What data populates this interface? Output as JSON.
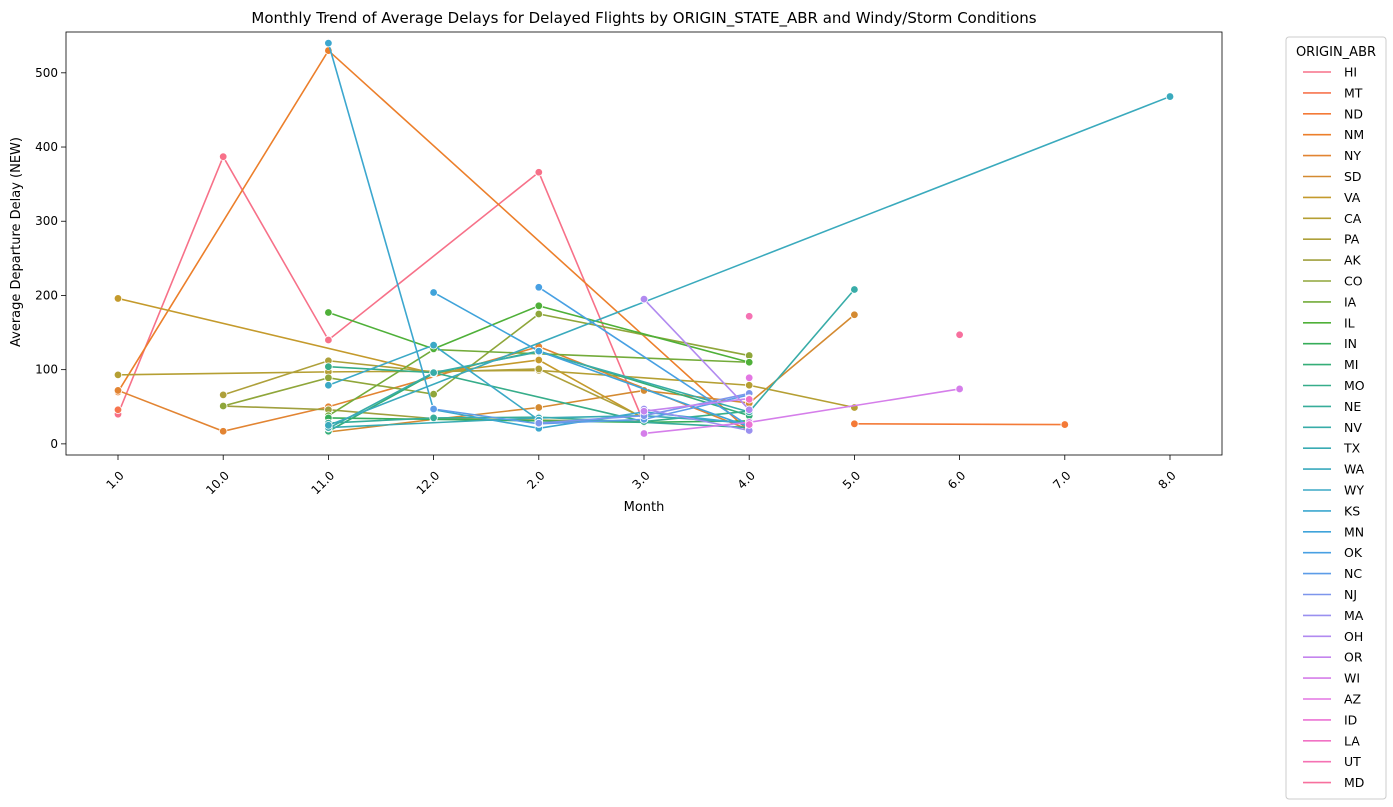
{
  "chart_data": {
    "type": "line",
    "title": "Monthly Trend of Average Delays for Delayed Flights by ORIGIN_STATE_ABR and Windy/Storm Conditions",
    "xlabel": "Month",
    "ylabel": "Average Departure Delay (NEW)",
    "categories": [
      "1.0",
      "10.0",
      "11.0",
      "12.0",
      "2.0",
      "3.0",
      "4.0",
      "5.0",
      "6.0",
      "7.0",
      "8.0"
    ],
    "y_ticks": [
      0,
      100,
      200,
      300,
      400,
      500
    ],
    "ylim": [
      -15,
      555
    ],
    "grid": false,
    "legend": {
      "title": "ORIGIN_ABR",
      "placement": "outside-right"
    },
    "series": [
      {
        "name": "HI",
        "color": "#f77189",
        "points": [
          [
            "1.0",
            40
          ],
          [
            "10.0",
            387
          ],
          [
            "11.0",
            140
          ],
          [
            "2.0",
            366
          ],
          [
            "3.0",
            28
          ]
        ]
      },
      {
        "name": "MT",
        "color": "#f7754f",
        "points": [
          [
            "1.0",
            46
          ]
        ]
      },
      {
        "name": "ND",
        "color": "#f47a37",
        "points": [
          [
            "5.0",
            27
          ],
          [
            "7.0",
            26
          ]
        ]
      },
      {
        "name": "NM",
        "color": "#ec7f2b",
        "points": [
          [
            "1.0",
            70
          ],
          [
            "11.0",
            530
          ],
          [
            "4.0",
            17
          ]
        ]
      },
      {
        "name": "NY",
        "color": "#e28432",
        "points": [
          [
            "1.0",
            72
          ],
          [
            "10.0",
            17
          ],
          [
            "11.0",
            50
          ],
          [
            "2.0",
            131
          ],
          [
            "4.0",
            19
          ]
        ]
      },
      {
        "name": "SD",
        "color": "#d48a31",
        "points": [
          [
            "11.0",
            16
          ],
          [
            "12.0",
            33
          ],
          [
            "2.0",
            49
          ],
          [
            "3.0",
            72
          ],
          [
            "4.0",
            55
          ],
          [
            "5.0",
            174
          ]
        ]
      },
      {
        "name": "VA",
        "color": "#c49a2c",
        "points": [
          [
            "1.0",
            196
          ],
          [
            "12.0",
            95
          ],
          [
            "2.0",
            113
          ],
          [
            "3.0",
            34
          ]
        ]
      },
      {
        "name": "CA",
        "color": "#b59f33",
        "points": [
          [
            "1.0",
            93
          ],
          [
            "11.0",
            97
          ],
          [
            "2.0",
            99
          ],
          [
            "4.0",
            79
          ],
          [
            "5.0",
            49
          ]
        ]
      },
      {
        "name": "PA",
        "color": "#aea03a",
        "points": [
          [
            "10.0",
            66
          ],
          [
            "11.0",
            112
          ],
          [
            "12.0",
            97
          ],
          [
            "2.0",
            101
          ],
          [
            "3.0",
            35
          ]
        ]
      },
      {
        "name": "AK",
        "color": "#a0a03e",
        "points": [
          [
            "10.0",
            51
          ],
          [
            "11.0",
            46
          ],
          [
            "12.0",
            34
          ],
          [
            "3.0",
            30
          ]
        ]
      },
      {
        "name": "CO",
        "color": "#8fa63a",
        "points": [
          [
            "10.0",
            51
          ],
          [
            "11.0",
            89
          ],
          [
            "12.0",
            67
          ],
          [
            "2.0",
            175
          ],
          [
            "4.0",
            119
          ]
        ]
      },
      {
        "name": "IA",
        "color": "#73ab3a",
        "points": [
          [
            "11.0",
            38
          ],
          [
            "12.0",
            127
          ],
          [
            "4.0",
            110
          ]
        ]
      },
      {
        "name": "IL",
        "color": "#4fb039",
        "points": [
          [
            "11.0",
            177
          ],
          [
            "12.0",
            128
          ],
          [
            "2.0",
            186
          ],
          [
            "4.0",
            110
          ]
        ]
      },
      {
        "name": "IN",
        "color": "#36ad59",
        "points": [
          [
            "11.0",
            35
          ],
          [
            "2.0",
            31
          ],
          [
            "3.0",
            29
          ],
          [
            "4.0",
            31
          ]
        ]
      },
      {
        "name": "MI",
        "color": "#35ae78",
        "points": [
          [
            "11.0",
            17
          ],
          [
            "12.0",
            95
          ],
          [
            "2.0",
            125
          ],
          [
            "4.0",
            38
          ]
        ]
      },
      {
        "name": "MO",
        "color": "#36ad8a",
        "points": [
          [
            "11.0",
            104
          ],
          [
            "12.0",
            96
          ],
          [
            "3.0",
            30
          ],
          [
            "4.0",
            44
          ]
        ]
      },
      {
        "name": "NE",
        "color": "#37ad9a",
        "points": [
          [
            "11.0",
            28
          ],
          [
            "12.0",
            35
          ],
          [
            "2.0",
            36
          ],
          [
            "4.0",
            22
          ]
        ]
      },
      {
        "name": "NV",
        "color": "#38aca8",
        "points": [
          [
            "11.0",
            21
          ],
          [
            "12.0",
            96
          ],
          [
            "2.0",
            124
          ],
          [
            "4.0",
            43
          ],
          [
            "5.0",
            208
          ]
        ]
      },
      {
        "name": "TX",
        "color": "#39abb3",
        "points": [
          [
            "11.0",
            22
          ],
          [
            "2.0",
            35
          ],
          [
            "3.0",
            38
          ],
          [
            "4.0",
            28
          ]
        ]
      },
      {
        "name": "WA",
        "color": "#3aaabd",
        "points": [
          [
            "11.0",
            25
          ],
          [
            "8.0",
            468
          ]
        ]
      },
      {
        "name": "WY",
        "color": "#3ba9c6",
        "points": [
          [
            "11.0",
            79
          ],
          [
            "12.0",
            133
          ],
          [
            "2.0",
            32
          ]
        ]
      },
      {
        "name": "KS",
        "color": "#3ca7cf",
        "points": [
          [
            "11.0",
            540
          ],
          [
            "12.0",
            46
          ],
          [
            "2.0",
            21
          ],
          [
            "3.0",
            43
          ],
          [
            "4.0",
            27
          ]
        ]
      },
      {
        "name": "MN",
        "color": "#3fa3da",
        "points": [
          [
            "12.0",
            204
          ],
          [
            "2.0",
            125
          ],
          [
            "4.0",
            23
          ]
        ]
      },
      {
        "name": "OK",
        "color": "#48a0e3",
        "points": [
          [
            "2.0",
            211
          ],
          [
            "4.0",
            24
          ]
        ]
      },
      {
        "name": "NC",
        "color": "#5c9ce8",
        "points": [
          [
            "12.0",
            47
          ],
          [
            "2.0",
            27
          ],
          [
            "3.0",
            33
          ],
          [
            "4.0",
            66
          ]
        ]
      },
      {
        "name": "NJ",
        "color": "#7d96ec",
        "points": [
          [
            "2.0",
            28
          ],
          [
            "3.0",
            38
          ],
          [
            "4.0",
            68
          ]
        ]
      },
      {
        "name": "MA",
        "color": "#9a90f0",
        "points": [
          [
            "3.0",
            47
          ],
          [
            "4.0",
            18
          ]
        ]
      },
      {
        "name": "OH",
        "color": "#b18af0",
        "points": [
          [
            "3.0",
            195
          ],
          [
            "4.0",
            46
          ]
        ]
      },
      {
        "name": "OR",
        "color": "#c484ee",
        "points": [
          [
            "3.0",
            44
          ],
          [
            "4.0",
            61
          ]
        ]
      },
      {
        "name": "WI",
        "color": "#d57eea",
        "points": [
          [
            "3.0",
            14
          ],
          [
            "4.0",
            29
          ],
          [
            "6.0",
            74
          ]
        ]
      },
      {
        "name": "AZ",
        "color": "#e377e3",
        "points": [
          [
            "4.0",
            89
          ]
        ]
      },
      {
        "name": "ID",
        "color": "#ec73d4",
        "points": [
          [
            "4.0",
            26
          ]
        ]
      },
      {
        "name": "LA",
        "color": "#f172c4",
        "points": [
          [
            "4.0",
            60
          ]
        ]
      },
      {
        "name": "UT",
        "color": "#f572b3",
        "points": [
          [
            "4.0",
            172
          ]
        ]
      },
      {
        "name": "MD",
        "color": "#f7709e",
        "points": [
          [
            "6.0",
            147
          ]
        ]
      }
    ]
  }
}
